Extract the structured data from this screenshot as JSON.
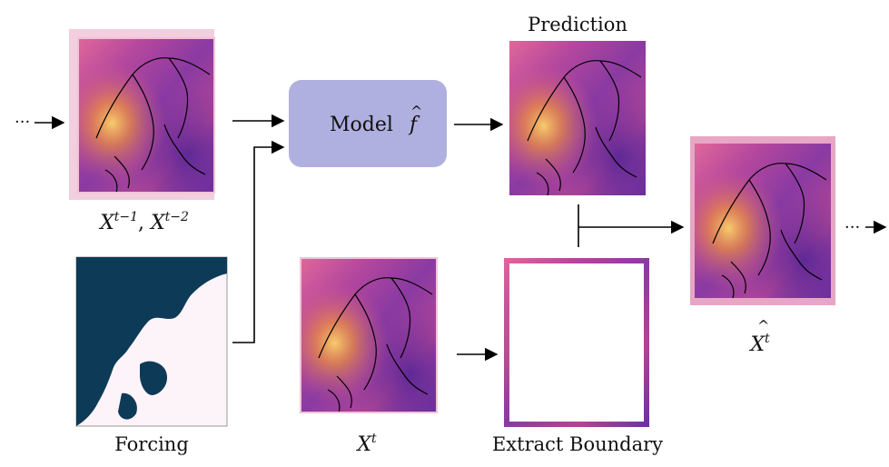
{
  "labels": {
    "prediction": "Prediction",
    "model": "Model",
    "model_symbol": "f",
    "model_hat": "^",
    "prev_states_1": "X",
    "prev_states_1_sup": "t−1",
    "prev_states_sep": ", ",
    "prev_states_2": "X",
    "prev_states_2_sup": "t−2",
    "forcing": "Forcing",
    "current_state": "X",
    "current_state_sup": "t",
    "extract_boundary": "Extract Boundary",
    "output_state": "X",
    "output_state_sup": "t",
    "output_hat": "^",
    "ellipsis_in": "···",
    "ellipsis_out": "···"
  },
  "colors": {
    "model_box": "#b0b0e0",
    "forcing_land": "#0d3b57",
    "forcing_sea": "#fdf4fa",
    "field_low": "#5a2b9c",
    "field_mid": "#c04a8e",
    "field_high": "#f3a236",
    "boundary_frame": "#d77aa6"
  }
}
